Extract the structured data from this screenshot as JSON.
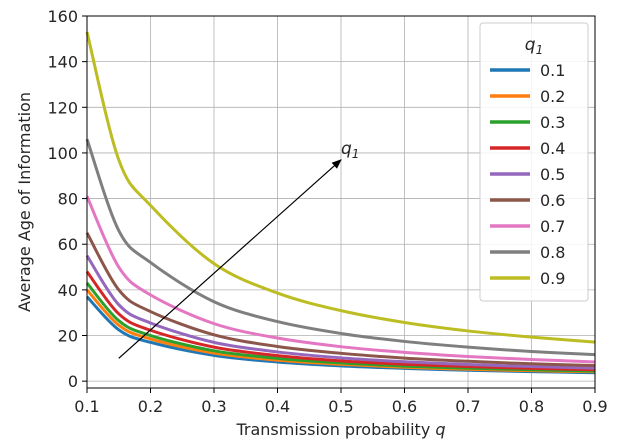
{
  "chart_data": {
    "type": "line",
    "title": "",
    "xlabel": "Transmission probability ",
    "xlabel_var": "q",
    "ylabel": "Average Age of Information",
    "xlim": [
      0.1,
      0.9
    ],
    "ylim": [
      -3,
      160
    ],
    "x_ticks": [
      "0.1",
      "0.2",
      "0.3",
      "0.4",
      "0.5",
      "0.6",
      "0.7",
      "0.8",
      "0.9"
    ],
    "y_ticks": [
      "0",
      "20",
      "40",
      "60",
      "80",
      "100",
      "120",
      "140",
      "160"
    ],
    "grid": true,
    "legend": {
      "title": "q",
      "title_sub": "1",
      "placement": "upper right"
    },
    "annotation": {
      "text": "q",
      "sub": "1",
      "from": [
        0.15,
        10
      ],
      "to": [
        0.5,
        97
      ]
    },
    "x": [
      0.1,
      0.15,
      0.2,
      0.3,
      0.4,
      0.5,
      0.6,
      0.7,
      0.8,
      0.9
    ],
    "series": [
      {
        "name": "0.1",
        "color": "#1f77b4",
        "values": [
          37,
          22.5,
          17,
          11.3,
          8.4,
          6.7,
          5.6,
          4.8,
          4.2,
          3.7
        ]
      },
      {
        "name": "0.2",
        "color": "#ff7f0e",
        "values": [
          40,
          24.5,
          18.5,
          12.3,
          9.2,
          7.4,
          6.1,
          5.2,
          4.6,
          4.1
        ]
      },
      {
        "name": "0.3",
        "color": "#2ca02c",
        "values": [
          43,
          26.5,
          20,
          13.3,
          10,
          8,
          6.6,
          5.7,
          5,
          4.4
        ]
      },
      {
        "name": "0.4",
        "color": "#d62728",
        "values": [
          48,
          29.5,
          22.3,
          14.9,
          11.2,
          8.9,
          7.4,
          6.4,
          5.6,
          5
        ]
      },
      {
        "name": "0.5",
        "color": "#9467bd",
        "values": [
          55,
          33.5,
          25.5,
          17,
          12.8,
          10.2,
          8.5,
          7.3,
          6.4,
          5.7
        ]
      },
      {
        "name": "0.6",
        "color": "#8c564b",
        "values": [
          65,
          40,
          30.5,
          20.3,
          15.2,
          12.2,
          10.1,
          8.7,
          7.6,
          6.8
        ]
      },
      {
        "name": "0.7",
        "color": "#e377c2",
        "values": [
          81,
          50,
          37.8,
          25.2,
          18.9,
          15.1,
          12.6,
          10.8,
          9.5,
          8.4
        ]
      },
      {
        "name": "0.8",
        "color": "#7f7f7f",
        "values": [
          106,
          66,
          52,
          34.8,
          26.1,
          20.9,
          17.4,
          14.9,
          13,
          11.6
        ]
      },
      {
        "name": "0.9",
        "color": "#bcbd22",
        "values": [
          153,
          97,
          77,
          51.5,
          38.6,
          30.9,
          25.7,
          22,
          19.3,
          17.1
        ]
      }
    ]
  }
}
